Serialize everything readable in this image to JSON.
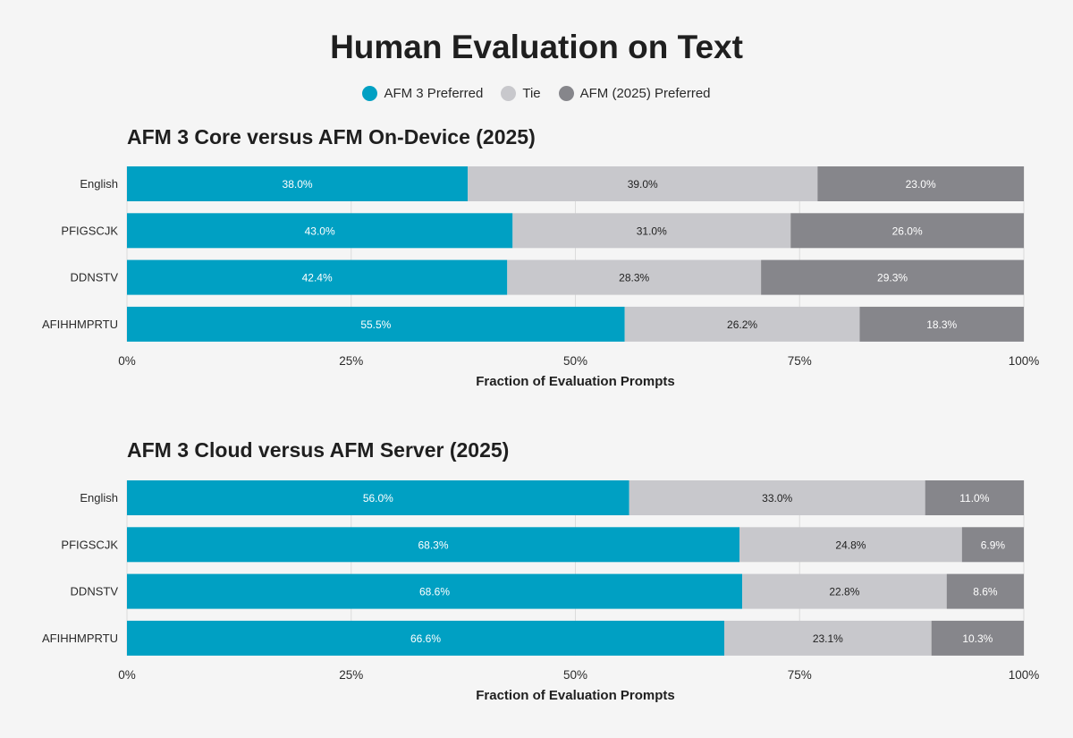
{
  "title": "Human Evaluation on Text",
  "legend": [
    {
      "label": "AFM 3 Preferred",
      "color": "#00a0c3"
    },
    {
      "label": "Tie",
      "color": "#c8c8cc"
    },
    {
      "label": "AFM (2025) Preferred",
      "color": "#86868b"
    }
  ],
  "chart_data": [
    {
      "type": "bar",
      "orientation": "horizontal",
      "stacked": true,
      "title": "AFM 3 Core versus AFM On-Device (2025)",
      "xlabel": "Fraction of Evaluation Prompts",
      "xlim": [
        0,
        100
      ],
      "xticks": [
        "0%",
        "25%",
        "50%",
        "75%",
        "100%"
      ],
      "grid": true,
      "legend": "top-center",
      "categories": [
        "English",
        "PFIGSCJK",
        "DDNSTV",
        "AFIHHMPRTU"
      ],
      "series": [
        {
          "name": "AFM 3 Preferred",
          "values": [
            38.0,
            43.0,
            42.4,
            55.5
          ],
          "labels": [
            "38.0%",
            "43.0%",
            "42.4%",
            "55.5%"
          ]
        },
        {
          "name": "Tie",
          "values": [
            39.0,
            31.0,
            28.3,
            26.2
          ],
          "labels": [
            "39.0%",
            "31.0%",
            "28.3%",
            "26.2%"
          ]
        },
        {
          "name": "AFM (2025) Preferred",
          "values": [
            23.0,
            26.0,
            29.3,
            18.3
          ],
          "labels": [
            "23.0%",
            "26.0%",
            "29.3%",
            "18.3%"
          ]
        }
      ]
    },
    {
      "type": "bar",
      "orientation": "horizontal",
      "stacked": true,
      "title": "AFM 3 Cloud versus AFM Server (2025)",
      "xlabel": "Fraction of Evaluation Prompts",
      "xlim": [
        0,
        100
      ],
      "xticks": [
        "0%",
        "25%",
        "50%",
        "75%",
        "100%"
      ],
      "grid": true,
      "legend": "top-center",
      "categories": [
        "English",
        "PFIGSCJK",
        "DDNSTV",
        "AFIHHMPRTU"
      ],
      "series": [
        {
          "name": "AFM 3 Preferred",
          "values": [
            56.0,
            68.3,
            68.6,
            66.6
          ],
          "labels": [
            "56.0%",
            "68.3%",
            "68.6%",
            "66.6%"
          ]
        },
        {
          "name": "Tie",
          "values": [
            33.0,
            24.8,
            22.8,
            23.1
          ],
          "labels": [
            "33.0%",
            "24.8%",
            "22.8%",
            "23.1%"
          ]
        },
        {
          "name": "AFM (2025) Preferred",
          "values": [
            11.0,
            6.9,
            8.6,
            10.3
          ],
          "labels": [
            "11.0%",
            "6.9%",
            "8.6%",
            "10.3%"
          ]
        }
      ]
    }
  ]
}
